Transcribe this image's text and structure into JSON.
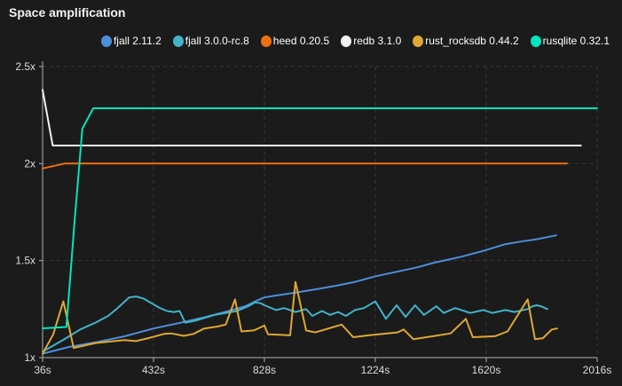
{
  "title": "Space amplification",
  "chart": {
    "bg": "#1b1b1b",
    "axis_color": "#b0b0b0",
    "grid_color": "#383838",
    "label_color": "#dcdcdc"
  },
  "chart_data": {
    "type": "line",
    "title": "Space amplification",
    "xlabel": "",
    "ylabel": "",
    "x_unit": "s",
    "xlim": [
      36,
      2016
    ],
    "ylim": [
      1,
      2.5
    ],
    "x_ticks": [
      36,
      432,
      828,
      1224,
      1620,
      2016
    ],
    "x_tick_labels": [
      "36s",
      "432s",
      "828s",
      "1224s",
      "1620s",
      "2016s"
    ],
    "y_ticks": [
      1,
      1.5,
      2,
      2.5
    ],
    "y_tick_labels": [
      "1x",
      "1.5x",
      "2x",
      "2.5x"
    ],
    "grid": "dashed",
    "legend_position": "top",
    "series": [
      {
        "name": "fjall 2.11.2",
        "color": "#4d8edb",
        "points": [
          [
            36,
            1.02
          ],
          [
            130,
            1.055
          ],
          [
            230,
            1.08
          ],
          [
            330,
            1.11
          ],
          [
            432,
            1.15
          ],
          [
            530,
            1.18
          ],
          [
            620,
            1.21
          ],
          [
            700,
            1.24
          ],
          [
            760,
            1.265
          ],
          [
            795,
            1.29
          ],
          [
            828,
            1.31
          ],
          [
            870,
            1.32
          ],
          [
            939,
            1.335
          ],
          [
            1024,
            1.355
          ],
          [
            1100,
            1.375
          ],
          [
            1151,
            1.39
          ],
          [
            1227,
            1.42
          ],
          [
            1309,
            1.445
          ],
          [
            1373,
            1.465
          ],
          [
            1436,
            1.49
          ],
          [
            1484,
            1.505
          ],
          [
            1531,
            1.52
          ],
          [
            1610,
            1.55
          ],
          [
            1689,
            1.585
          ],
          [
            1752,
            1.6
          ],
          [
            1800,
            1.61
          ],
          [
            1870,
            1.63
          ]
        ]
      },
      {
        "name": "fjall 3.0.0-rc.8",
        "color": "#42b3c9",
        "points": [
          [
            36,
            1.03
          ],
          [
            120,
            1.1
          ],
          [
            170,
            1.145
          ],
          [
            225,
            1.18
          ],
          [
            270,
            1.215
          ],
          [
            300,
            1.25
          ],
          [
            330,
            1.29
          ],
          [
            345,
            1.31
          ],
          [
            370,
            1.315
          ],
          [
            395,
            1.305
          ],
          [
            420,
            1.285
          ],
          [
            455,
            1.255
          ],
          [
            480,
            1.24
          ],
          [
            505,
            1.235
          ],
          [
            525,
            1.24
          ],
          [
            545,
            1.18
          ],
          [
            580,
            1.19
          ],
          [
            615,
            1.205
          ],
          [
            650,
            1.22
          ],
          [
            690,
            1.23
          ],
          [
            730,
            1.24
          ],
          [
            770,
            1.265
          ],
          [
            795,
            1.285
          ],
          [
            815,
            1.28
          ],
          [
            828,
            1.27
          ],
          [
            870,
            1.245
          ],
          [
            898,
            1.255
          ],
          [
            939,
            1.235
          ],
          [
            977,
            1.25
          ],
          [
            999,
            1.215
          ],
          [
            1034,
            1.24
          ],
          [
            1062,
            1.22
          ],
          [
            1091,
            1.235
          ],
          [
            1119,
            1.215
          ],
          [
            1151,
            1.245
          ],
          [
            1183,
            1.255
          ],
          [
            1224,
            1.29
          ],
          [
            1262,
            1.2
          ],
          [
            1300,
            1.27
          ],
          [
            1332,
            1.21
          ],
          [
            1366,
            1.27
          ],
          [
            1398,
            1.22
          ],
          [
            1442,
            1.265
          ],
          [
            1468,
            1.23
          ],
          [
            1509,
            1.255
          ],
          [
            1563,
            1.23
          ],
          [
            1610,
            1.245
          ],
          [
            1642,
            1.23
          ],
          [
            1689,
            1.245
          ],
          [
            1721,
            1.235
          ],
          [
            1768,
            1.25
          ],
          [
            1785,
            1.265
          ],
          [
            1800,
            1.27
          ],
          [
            1815,
            1.265
          ],
          [
            1838,
            1.25
          ]
        ]
      },
      {
        "name": "heed 0.20.5",
        "color": "#ef700d",
        "points": [
          [
            36,
            1.975
          ],
          [
            115,
            2.0
          ],
          [
            1908,
            2.0
          ]
        ]
      },
      {
        "name": "redb 3.1.0",
        "color": "#f2f2f2",
        "points": [
          [
            36,
            2.38
          ],
          [
            72,
            2.093
          ],
          [
            1958,
            2.093
          ]
        ]
      },
      {
        "name": "rust_rocksdb 0.44.2",
        "color": "#dea832",
        "points": [
          [
            36,
            1.02
          ],
          [
            74,
            1.12
          ],
          [
            110,
            1.29
          ],
          [
            147,
            1.05
          ],
          [
            225,
            1.075
          ],
          [
            327,
            1.09
          ],
          [
            370,
            1.085
          ],
          [
            413,
            1.1
          ],
          [
            470,
            1.122
          ],
          [
            495,
            1.125
          ],
          [
            540,
            1.112
          ],
          [
            575,
            1.122
          ],
          [
            613,
            1.15
          ],
          [
            660,
            1.16
          ],
          [
            690,
            1.17
          ],
          [
            723,
            1.3
          ],
          [
            746,
            1.135
          ],
          [
            790,
            1.14
          ],
          [
            828,
            1.165
          ],
          [
            841,
            1.12
          ],
          [
            880,
            1.118
          ],
          [
            920,
            1.115
          ],
          [
            939,
            1.39
          ],
          [
            977,
            1.14
          ],
          [
            1010,
            1.13
          ],
          [
            1104,
            1.17
          ],
          [
            1145,
            1.105
          ],
          [
            1200,
            1.115
          ],
          [
            1303,
            1.13
          ],
          [
            1325,
            1.145
          ],
          [
            1360,
            1.095
          ],
          [
            1430,
            1.11
          ],
          [
            1493,
            1.125
          ],
          [
            1547,
            1.2
          ],
          [
            1572,
            1.105
          ],
          [
            1651,
            1.11
          ],
          [
            1696,
            1.135
          ],
          [
            1768,
            1.3
          ],
          [
            1794,
            1.095
          ],
          [
            1822,
            1.1
          ],
          [
            1854,
            1.145
          ],
          [
            1873,
            1.15
          ]
        ]
      },
      {
        "name": "rusqlite 0.32.1",
        "color": "#00e5c0",
        "points": [
          [
            36,
            1.151
          ],
          [
            121,
            1.158
          ],
          [
            150,
            1.7
          ],
          [
            178,
            2.18
          ],
          [
            217,
            2.285
          ],
          [
            2016,
            2.285
          ]
        ]
      }
    ]
  }
}
